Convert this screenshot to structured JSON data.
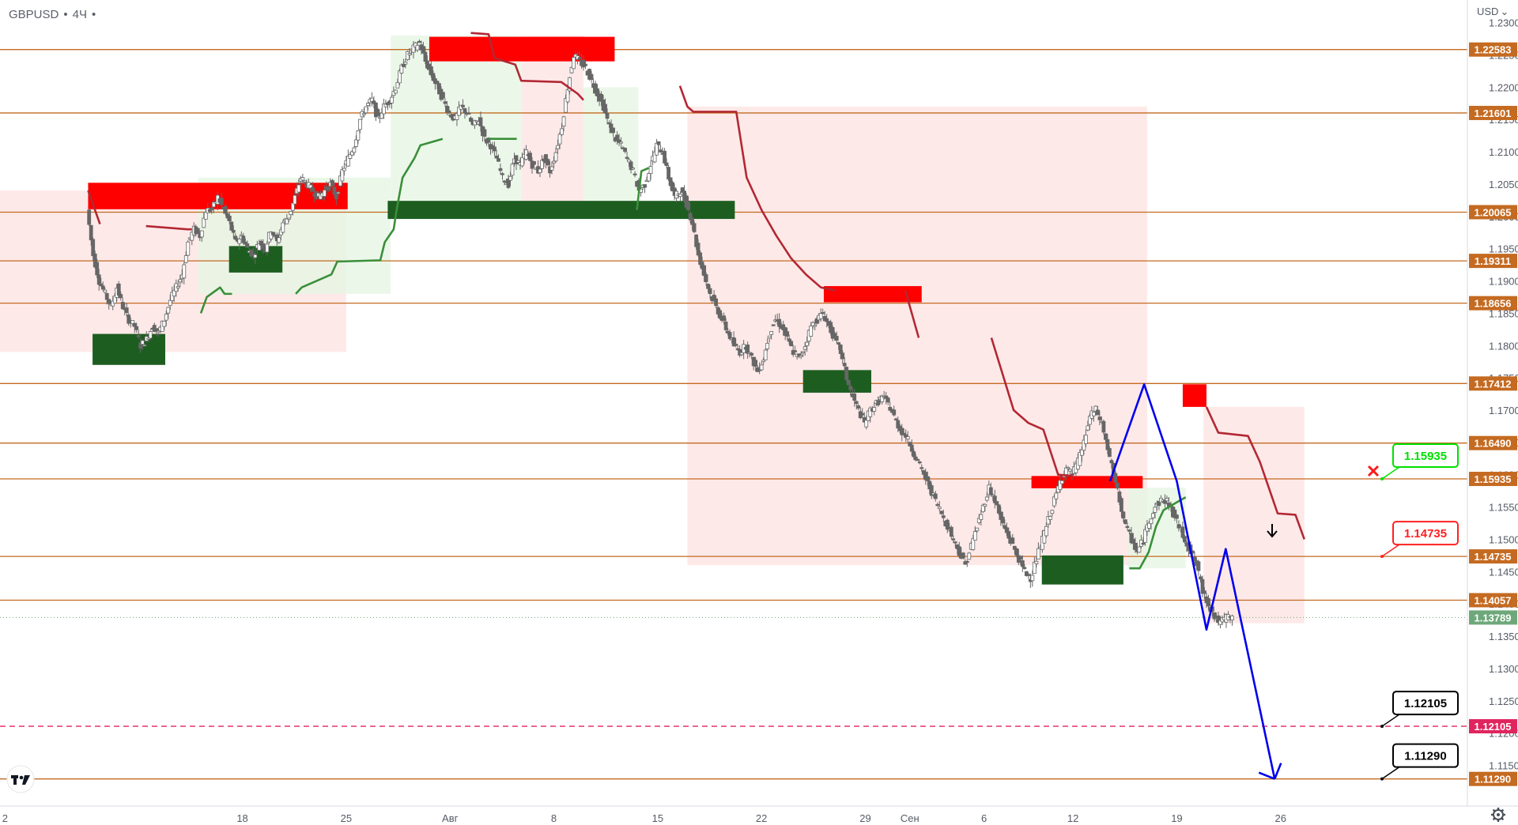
{
  "header": {
    "symbol": "GBPUSD",
    "interval": "4Ч",
    "menu_glyph": "•"
  },
  "price_axis": {
    "currency": "USD",
    "currency_caret": "⌄"
  },
  "icons": {
    "tv_logo": "tradingview-logo-icon",
    "settings": "gear-icon",
    "cancel": "cross-icon",
    "entry": "arrow-down-icon"
  },
  "colors": {
    "level": "#c46a21",
    "supply": "#ff0000",
    "demand": "#1d5e20",
    "trail_bear": "#b22833",
    "trail_bull": "#3a8f3a",
    "fill_bear": "#fde1e1",
    "fill_bull": "#e4f5e2",
    "candle": "#666666",
    "forecast": "#0000ee",
    "target_dashed": "#e0245e",
    "current_price": "#6ea87a",
    "callout_green": "#00e000",
    "callout_red": "#ff2020",
    "callout_black": "#000000"
  },
  "chart_data": {
    "type": "candlestick",
    "instrument": "GBPUSD",
    "timeframe": "4Ч",
    "y_axis": {
      "ylim": [
        1.1087,
        1.2335
      ],
      "tick_step": 0.005,
      "position": "right"
    },
    "x_axis": {
      "ticks": [
        {
          "label": "2",
          "day": 2
        },
        {
          "label": "18",
          "day": 18
        },
        {
          "label": "25",
          "day": 25
        },
        {
          "label": "Авг",
          "day": 32
        },
        {
          "label": "8",
          "day": 39
        },
        {
          "label": "15",
          "day": 46
        },
        {
          "label": "22",
          "day": 53
        },
        {
          "label": "29",
          "day": 60
        },
        {
          "label": "Сен",
          "day": 63
        },
        {
          "label": "6",
          "day": 68
        },
        {
          "label": "12",
          "day": 74
        },
        {
          "label": "19",
          "day": 81
        },
        {
          "label": "26",
          "day": 88
        }
      ]
    },
    "y_ticks": [
      "1.23000",
      "1.22500",
      "1.22000",
      "1.21500",
      "1.21000",
      "1.20500",
      "1.20000",
      "1.19500",
      "1.19000",
      "1.18500",
      "1.18000",
      "1.17500",
      "1.17000",
      "1.16500",
      "1.16000",
      "1.15500",
      "1.15000",
      "1.14500",
      "1.14000",
      "1.13500",
      "1.13000",
      "1.12500",
      "1.12000",
      "1.11500"
    ],
    "levels": [
      {
        "value": 1.22583,
        "label": "1.22583"
      },
      {
        "value": 1.21601,
        "label": "1.21601"
      },
      {
        "value": 1.20065,
        "label": "1.20065"
      },
      {
        "value": 1.19311,
        "label": "1.19311"
      },
      {
        "value": 1.18656,
        "label": "1.18656"
      },
      {
        "value": 1.17412,
        "label": "1.17412"
      },
      {
        "value": 1.1649,
        "label": "1.16490"
      },
      {
        "value": 1.15935,
        "label": "1.15935"
      },
      {
        "value": 1.14735,
        "label": "1.14735"
      },
      {
        "value": 1.14057,
        "label": "1.14057"
      },
      {
        "value": 1.1129,
        "label": "1.11290"
      }
    ],
    "target_level": {
      "value": 1.12105,
      "label": "1.12105"
    },
    "current_price": {
      "value": 1.13789,
      "label": "1.13789"
    },
    "supply_zones": [
      {
        "d0": 7.6,
        "d1": 25.1,
        "top": 1.2052,
        "bottom": 1.2011
      },
      {
        "d0": 30.6,
        "d1": 43.1,
        "top": 1.2278,
        "bottom": 1.224
      },
      {
        "d0": 57.2,
        "d1": 63.8,
        "top": 1.1892,
        "bottom": 1.1867
      },
      {
        "d0": 71.2,
        "d1": 78.7,
        "top": 1.1598,
        "bottom": 1.1579
      },
      {
        "d0": 81.4,
        "d1": 83.0,
        "top": 1.174,
        "bottom": 1.1705
      }
    ],
    "demand_zones": [
      {
        "d0": 7.9,
        "d1": 12.8,
        "top": 1.1818,
        "bottom": 1.177
      },
      {
        "d0": 17.1,
        "d1": 20.7,
        "top": 1.1954,
        "bottom": 1.1913
      },
      {
        "d0": 27.8,
        "d1": 51.2,
        "top": 1.2024,
        "bottom": 1.1996
      },
      {
        "d0": 55.8,
        "d1": 60.4,
        "top": 1.1762,
        "bottom": 1.1727
      },
      {
        "d0": 71.9,
        "d1": 77.4,
        "top": 1.1475,
        "bottom": 1.143
      }
    ],
    "trail_bear": [
      [
        7.6,
        1.204
      ],
      [
        8.4,
        1.1988
      ],
      [
        11.5,
        1.1985
      ],
      [
        14.3,
        1.198
      ],
      [
        14.6,
        1.198
      ],
      [
        33.4,
        1.2284
      ],
      [
        34.6,
        1.2282
      ],
      [
        35.0,
        1.2245
      ],
      [
        36.4,
        1.2235
      ],
      [
        36.8,
        1.221
      ],
      [
        39.5,
        1.2208
      ],
      [
        40.6,
        1.219
      ],
      [
        41.0,
        1.218
      ],
      [
        47.5,
        1.2202
      ],
      [
        48.0,
        1.217
      ],
      [
        48.4,
        1.2162
      ],
      [
        51.3,
        1.2162
      ],
      [
        52.0,
        1.206
      ],
      [
        53.0,
        1.201
      ],
      [
        54.0,
        1.197
      ],
      [
        55.0,
        1.1935
      ],
      [
        56.0,
        1.191
      ],
      [
        57.0,
        1.189
      ],
      [
        58.0,
        1.1885
      ],
      [
        62.7,
        1.1885
      ],
      [
        63.6,
        1.1812
      ],
      [
        68.5,
        1.1812
      ],
      [
        69.2,
        1.176
      ],
      [
        70.0,
        1.17
      ],
      [
        71.0,
        1.168
      ],
      [
        72.0,
        1.167
      ],
      [
        73.0,
        1.16
      ],
      [
        74.0,
        1.1598
      ],
      [
        79.0,
        1.1598
      ],
      [
        83.0,
        1.1705
      ],
      [
        83.8,
        1.1665
      ],
      [
        85.8,
        1.166
      ],
      [
        86.6,
        1.162
      ],
      [
        87.2,
        1.158
      ],
      [
        87.8,
        1.154
      ],
      [
        89.0,
        1.1538
      ],
      [
        89.6,
        1.15
      ]
    ],
    "trail_bull": [
      [
        15.2,
        1.185
      ],
      [
        15.6,
        1.1875
      ],
      [
        16.5,
        1.189
      ],
      [
        16.8,
        1.188
      ],
      [
        17.3,
        1.188
      ],
      [
        21.6,
        1.188
      ],
      [
        22.0,
        1.189
      ],
      [
        24.0,
        1.191
      ],
      [
        24.4,
        1.193
      ],
      [
        27.3,
        1.1932
      ],
      [
        27.6,
        1.196
      ],
      [
        28.2,
        1.198
      ],
      [
        28.4,
        1.201
      ],
      [
        28.8,
        1.206
      ],
      [
        29.6,
        1.209
      ],
      [
        30.0,
        1.211
      ],
      [
        31.5,
        1.212
      ],
      [
        34.6,
        1.212
      ],
      [
        35.0,
        1.212
      ],
      [
        36.5,
        1.212
      ],
      [
        44.6,
        1.201
      ],
      [
        44.9,
        1.207
      ],
      [
        45.4,
        1.2075
      ],
      [
        50.2,
        1.2075
      ],
      [
        77.8,
        1.1455
      ],
      [
        78.5,
        1.1455
      ],
      [
        79.1,
        1.148
      ],
      [
        79.6,
        1.152
      ],
      [
        80.1,
        1.1545
      ],
      [
        81.2,
        1.156
      ],
      [
        81.6,
        1.1565
      ]
    ],
    "candle_path_bear": [
      [
        7.6,
        1.201
      ],
      [
        8.6,
        1.189
      ],
      [
        9.6,
        1.185
      ],
      [
        10.6,
        1.183
      ],
      [
        11.6,
        1.181
      ],
      [
        12.6,
        1.182
      ],
      [
        13.6,
        1.184
      ],
      [
        14.2,
        1.188
      ],
      [
        14.5,
        1.192
      ]
    ],
    "candles_wave": [
      [
        7.6,
        1.201
      ],
      [
        8.0,
        1.194
      ],
      [
        8.4,
        1.19
      ],
      [
        8.8,
        1.188
      ],
      [
        9.2,
        1.186
      ],
      [
        9.6,
        1.189
      ],
      [
        10.0,
        1.186
      ],
      [
        10.4,
        1.184
      ],
      [
        10.8,
        1.183
      ],
      [
        11.2,
        1.18
      ],
      [
        11.6,
        1.181
      ],
      [
        12.0,
        1.183
      ],
      [
        12.4,
        1.182
      ],
      [
        12.8,
        1.184
      ],
      [
        13.2,
        1.187
      ],
      [
        13.6,
        1.189
      ],
      [
        14.0,
        1.191
      ],
      [
        14.4,
        1.196
      ],
      [
        14.8,
        1.198
      ],
      [
        15.2,
        1.197
      ],
      [
        15.6,
        1.201
      ],
      [
        16.0,
        1.201
      ],
      [
        16.4,
        1.203
      ],
      [
        16.8,
        1.201
      ],
      [
        17.2,
        1.199
      ],
      [
        17.6,
        1.196
      ],
      [
        18.0,
        1.197
      ],
      [
        18.4,
        1.195
      ],
      [
        18.8,
        1.194
      ],
      [
        19.2,
        1.196
      ],
      [
        19.6,
        1.195
      ],
      [
        20.0,
        1.198
      ],
      [
        20.4,
        1.196
      ],
      [
        20.8,
        1.199
      ],
      [
        21.2,
        1.2
      ],
      [
        21.6,
        1.203
      ],
      [
        22.0,
        1.206
      ],
      [
        22.4,
        1.205
      ],
      [
        22.8,
        1.204
      ],
      [
        23.2,
        1.203
      ],
      [
        23.6,
        1.204
      ],
      [
        24.0,
        1.205
      ],
      [
        24.4,
        1.203
      ],
      [
        24.8,
        1.207
      ],
      [
        25.2,
        1.209
      ],
      [
        25.6,
        1.211
      ],
      [
        26.0,
        1.215
      ],
      [
        26.4,
        1.217
      ],
      [
        26.8,
        1.218
      ],
      [
        27.2,
        1.215
      ],
      [
        27.6,
        1.217
      ],
      [
        28.0,
        1.218
      ],
      [
        28.4,
        1.22
      ],
      [
        28.8,
        1.223
      ],
      [
        29.2,
        1.225
      ],
      [
        29.6,
        1.226
      ],
      [
        30.0,
        1.227
      ],
      [
        30.4,
        1.224
      ],
      [
        30.8,
        1.222
      ],
      [
        31.2,
        1.22
      ],
      [
        31.6,
        1.218
      ],
      [
        32.0,
        1.216
      ],
      [
        32.4,
        1.215
      ],
      [
        32.8,
        1.217
      ],
      [
        33.2,
        1.216
      ],
      [
        33.6,
        1.214
      ],
      [
        34.0,
        1.215
      ],
      [
        34.4,
        1.212
      ],
      [
        34.8,
        1.211
      ],
      [
        35.2,
        1.209
      ],
      [
        35.6,
        1.206
      ],
      [
        36.0,
        1.205
      ],
      [
        36.4,
        1.209
      ],
      [
        36.8,
        1.208
      ],
      [
        37.2,
        1.21
      ],
      [
        37.6,
        1.208
      ],
      [
        38.0,
        1.207
      ],
      [
        38.4,
        1.209
      ],
      [
        38.8,
        1.207
      ],
      [
        39.2,
        1.21
      ],
      [
        39.6,
        1.214
      ],
      [
        40.0,
        1.22
      ],
      [
        40.4,
        1.225
      ],
      [
        40.8,
        1.224
      ],
      [
        41.2,
        1.223
      ],
      [
        41.6,
        1.221
      ],
      [
        42.0,
        1.219
      ],
      [
        42.4,
        1.217
      ],
      [
        42.8,
        1.214
      ],
      [
        43.2,
        1.212
      ],
      [
        43.6,
        1.211
      ],
      [
        44.0,
        1.209
      ],
      [
        44.4,
        1.207
      ],
      [
        44.8,
        1.204
      ],
      [
        45.2,
        1.205
      ],
      [
        45.6,
        1.208
      ],
      [
        46.0,
        1.211
      ],
      [
        46.4,
        1.21
      ],
      [
        46.8,
        1.206
      ],
      [
        47.2,
        1.203
      ],
      [
        47.6,
        1.204
      ],
      [
        48.0,
        1.202
      ],
      [
        48.4,
        1.199
      ],
      [
        48.8,
        1.194
      ],
      [
        49.2,
        1.191
      ],
      [
        49.6,
        1.188
      ],
      [
        50.0,
        1.186
      ],
      [
        50.4,
        1.184
      ],
      [
        50.8,
        1.182
      ],
      [
        51.2,
        1.18
      ],
      [
        51.6,
        1.179
      ],
      [
        52.0,
        1.18
      ],
      [
        52.4,
        1.178
      ],
      [
        52.8,
        1.176
      ],
      [
        53.2,
        1.178
      ],
      [
        53.6,
        1.182
      ],
      [
        54.0,
        1.184
      ],
      [
        54.4,
        1.183
      ],
      [
        54.8,
        1.181
      ],
      [
        55.2,
        1.179
      ],
      [
        55.6,
        1.178
      ],
      [
        56.0,
        1.18
      ],
      [
        56.4,
        1.183
      ],
      [
        56.8,
        1.184
      ],
      [
        57.2,
        1.185
      ],
      [
        57.6,
        1.183
      ],
      [
        58.0,
        1.181
      ],
      [
        58.4,
        1.179
      ],
      [
        58.8,
        1.175
      ],
      [
        59.2,
        1.172
      ],
      [
        59.6,
        1.17
      ],
      [
        60.0,
        1.168
      ],
      [
        60.4,
        1.17
      ],
      [
        60.8,
        1.171
      ],
      [
        61.2,
        1.172
      ],
      [
        61.6,
        1.171
      ],
      [
        62.0,
        1.169
      ],
      [
        62.4,
        1.167
      ],
      [
        62.8,
        1.166
      ],
      [
        63.2,
        1.164
      ],
      [
        63.6,
        1.162
      ],
      [
        64.0,
        1.16
      ],
      [
        64.4,
        1.158
      ],
      [
        64.8,
        1.156
      ],
      [
        65.2,
        1.154
      ],
      [
        65.6,
        1.152
      ],
      [
        66.0,
        1.15
      ],
      [
        66.4,
        1.148
      ],
      [
        66.8,
        1.146
      ],
      [
        67.2,
        1.149
      ],
      [
        67.6,
        1.152
      ],
      [
        68.0,
        1.155
      ],
      [
        68.4,
        1.158
      ],
      [
        68.8,
        1.156
      ],
      [
        69.2,
        1.153
      ],
      [
        69.6,
        1.151
      ],
      [
        70.0,
        1.149
      ],
      [
        70.4,
        1.147
      ],
      [
        70.8,
        1.145
      ],
      [
        71.2,
        1.144
      ],
      [
        71.6,
        1.147
      ],
      [
        72.0,
        1.15
      ],
      [
        72.4,
        1.153
      ],
      [
        72.8,
        1.156
      ],
      [
        73.2,
        1.159
      ],
      [
        73.6,
        1.161
      ],
      [
        74.0,
        1.16
      ],
      [
        74.4,
        1.162
      ],
      [
        74.8,
        1.165
      ],
      [
        75.2,
        1.169
      ],
      [
        75.6,
        1.17
      ],
      [
        76.0,
        1.168
      ],
      [
        76.4,
        1.164
      ],
      [
        76.8,
        1.16
      ],
      [
        77.2,
        1.156
      ],
      [
        77.6,
        1.152
      ],
      [
        78.0,
        1.15
      ],
      [
        78.4,
        1.148
      ],
      [
        78.8,
        1.15
      ],
      [
        79.2,
        1.153
      ],
      [
        79.6,
        1.155
      ],
      [
        80.0,
        1.156
      ],
      [
        80.4,
        1.156
      ],
      [
        80.8,
        1.154
      ],
      [
        81.2,
        1.152
      ],
      [
        81.6,
        1.15
      ],
      [
        82.0,
        1.148
      ],
      [
        82.4,
        1.146
      ],
      [
        82.8,
        1.142
      ],
      [
        83.2,
        1.14
      ],
      [
        83.6,
        1.138
      ],
      [
        84.0,
        1.137
      ],
      [
        84.4,
        1.138
      ],
      [
        84.8,
        1.1379
      ]
    ],
    "forecast_path": [
      [
        76.5,
        1.159
      ],
      [
        78.8,
        1.174
      ],
      [
        81.0,
        1.159
      ],
      [
        83.0,
        1.136
      ],
      [
        84.3,
        1.1485
      ],
      [
        87.6,
        1.1129
      ]
    ],
    "callouts": [
      {
        "label": "1.15935",
        "value": 1.15935,
        "style": "green"
      },
      {
        "label": "1.14735",
        "value": 1.14735,
        "style": "red"
      },
      {
        "label": "1.12105",
        "value": 1.12105,
        "style": "black"
      },
      {
        "label": "1.11290",
        "value": 1.1129,
        "style": "black"
      }
    ]
  }
}
